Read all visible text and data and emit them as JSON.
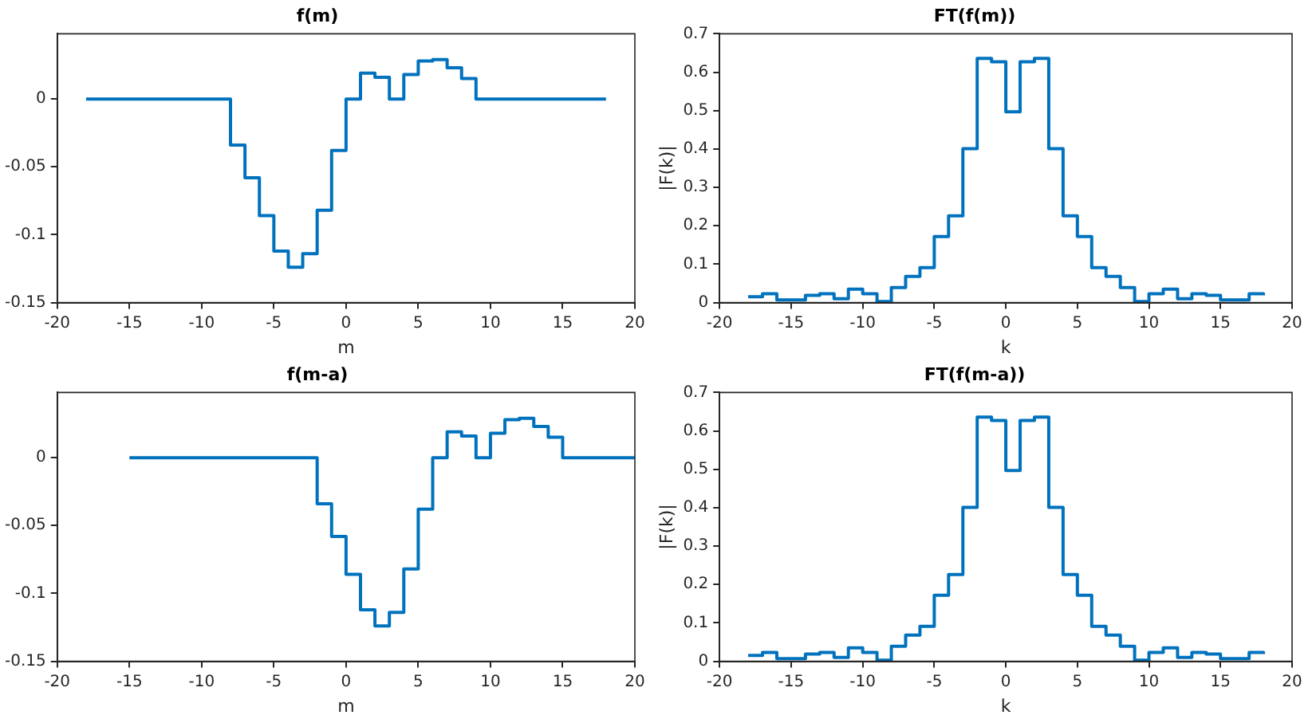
{
  "chart_data": [
    {
      "type": "step",
      "title": "f(m)",
      "xlabel": "m",
      "x": [
        -18,
        -17,
        -16,
        -15,
        -14,
        -13,
        -12,
        -11,
        -10,
        -9,
        -8,
        -7,
        -6,
        -5,
        -4,
        -3,
        -2,
        -1,
        0,
        1,
        2,
        3,
        4,
        5,
        6,
        7,
        8,
        9,
        10,
        11,
        12,
        13,
        14,
        15,
        16,
        17,
        18
      ],
      "color": "#0072bd",
      "values": [
        0,
        0,
        0,
        0,
        0,
        0,
        0,
        0,
        0,
        0,
        -0.034,
        -0.058,
        -0.086,
        -0.112,
        -0.124,
        -0.114,
        -0.082,
        -0.038,
        0,
        0.019,
        0.016,
        0,
        0.018,
        0.028,
        0.029,
        0.023,
        0.015,
        0,
        0,
        0,
        0,
        0,
        0,
        0,
        0,
        0,
        0
      ],
      "xlim": [
        -20,
        20
      ],
      "xticks": [
        -20,
        -15,
        -10,
        -5,
        0,
        5,
        10,
        15,
        20
      ],
      "ylim": [
        -0.15,
        0.048
      ],
      "yticks": [
        -0.15,
        -0.1,
        -0.05,
        0
      ]
    },
    {
      "type": "step",
      "title": "FT(f(m))",
      "xlabel": "k",
      "ylabel": "|F(k)|",
      "x": [
        -18,
        -17,
        -16,
        -15,
        -14,
        -13,
        -12,
        -11,
        -10,
        -9,
        -8,
        -7,
        -6,
        -5,
        -4,
        -3,
        -2,
        -1,
        0,
        1,
        2,
        3,
        4,
        5,
        6,
        7,
        8,
        9,
        10,
        11,
        12,
        13,
        14,
        15,
        16,
        17,
        18
      ],
      "color": "#0072bd",
      "values": [
        0.015,
        0.023,
        0.007,
        0.007,
        0.019,
        0.023,
        0.01,
        0.035,
        0.023,
        0.003,
        0.039,
        0.068,
        0.091,
        0.172,
        0.226,
        0.401,
        0.636,
        0.627,
        0.497,
        0.627,
        0.636,
        0.401,
        0.226,
        0.172,
        0.091,
        0.068,
        0.039,
        0.003,
        0.023,
        0.035,
        0.01,
        0.023,
        0.019,
        0.007,
        0.007,
        0.023,
        0.019
      ],
      "xlim": [
        -20,
        20
      ],
      "xticks": [
        -20,
        -15,
        -10,
        -5,
        0,
        5,
        10,
        15,
        20
      ],
      "ylim": [
        0,
        0.7
      ],
      "yticks": [
        0,
        0.1,
        0.2,
        0.3,
        0.4,
        0.5,
        0.6,
        0.7
      ]
    },
    {
      "type": "step",
      "title": "f(m-a)",
      "xlabel": "m",
      "x": [
        -15,
        -14,
        -13,
        -12,
        -11,
        -10,
        -9,
        -8,
        -7,
        -6,
        -5,
        -4,
        -3,
        -2,
        -1,
        0,
        1,
        2,
        3,
        4,
        5,
        6,
        7,
        8,
        9,
        10,
        11,
        12,
        13,
        14,
        15,
        16,
        17,
        18,
        19,
        20
      ],
      "color": "#0072bd",
      "values": [
        0,
        0,
        0,
        0,
        0,
        0,
        0,
        0,
        0,
        0,
        0,
        0,
        0,
        -0.034,
        -0.058,
        -0.086,
        -0.112,
        -0.124,
        -0.114,
        -0.082,
        -0.038,
        0,
        0.019,
        0.016,
        0,
        0.018,
        0.028,
        0.029,
        0.023,
        0.015,
        0,
        0,
        0,
        0,
        0,
        0
      ],
      "xlim": [
        -20,
        20
      ],
      "xticks": [
        -20,
        -15,
        -10,
        -5,
        0,
        5,
        10,
        15,
        20
      ],
      "ylim": [
        -0.15,
        0.048
      ],
      "yticks": [
        -0.15,
        -0.1,
        -0.05,
        0
      ]
    },
    {
      "type": "step",
      "title": "FT(f(m-a))",
      "xlabel": "k",
      "ylabel": "|F(k)|",
      "x": [
        -18,
        -17,
        -16,
        -15,
        -14,
        -13,
        -12,
        -11,
        -10,
        -9,
        -8,
        -7,
        -6,
        -5,
        -4,
        -3,
        -2,
        -1,
        0,
        1,
        2,
        3,
        4,
        5,
        6,
        7,
        8,
        9,
        10,
        11,
        12,
        13,
        14,
        15,
        16,
        17,
        18
      ],
      "color": "#0072bd",
      "values": [
        0.015,
        0.023,
        0.007,
        0.007,
        0.019,
        0.023,
        0.01,
        0.035,
        0.023,
        0.003,
        0.039,
        0.068,
        0.091,
        0.172,
        0.226,
        0.401,
        0.636,
        0.627,
        0.497,
        0.627,
        0.636,
        0.401,
        0.226,
        0.172,
        0.091,
        0.068,
        0.039,
        0.003,
        0.023,
        0.035,
        0.01,
        0.023,
        0.019,
        0.007,
        0.007,
        0.023,
        0.019
      ],
      "xlim": [
        -20,
        20
      ],
      "xticks": [
        -20,
        -15,
        -10,
        -5,
        0,
        5,
        10,
        15,
        20
      ],
      "ylim": [
        0,
        0.7
      ],
      "yticks": [
        0,
        0.1,
        0.2,
        0.3,
        0.4,
        0.5,
        0.6,
        0.7
      ]
    }
  ]
}
